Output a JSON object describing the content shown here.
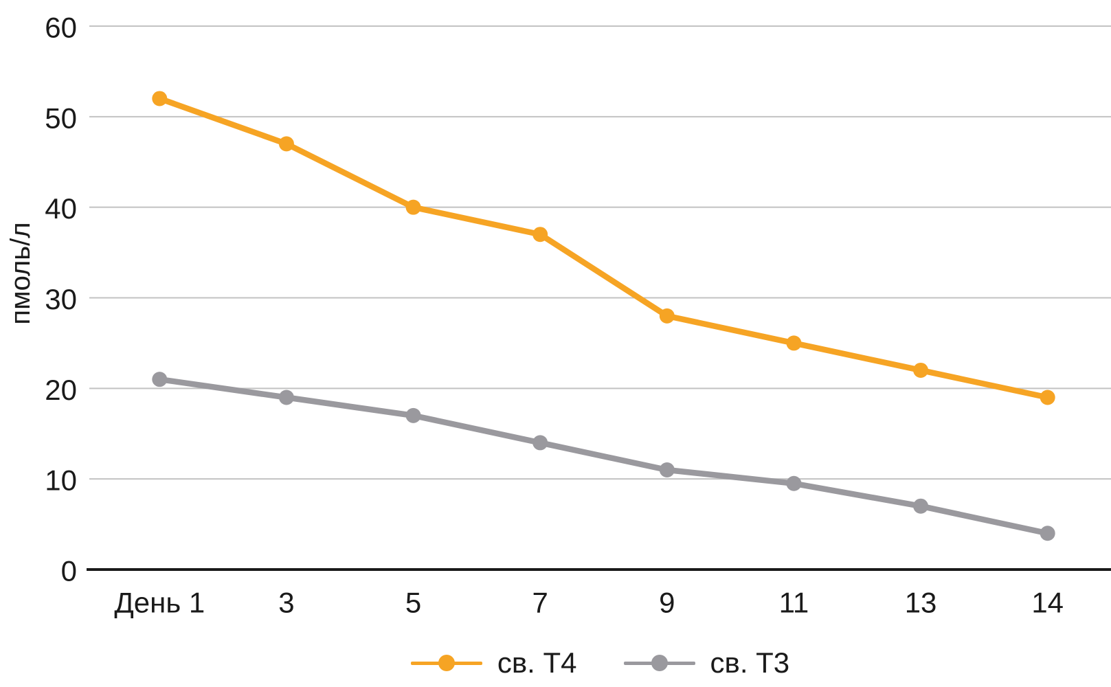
{
  "page": {
    "background": "#ffffff",
    "text_color": "#1a1a1a",
    "gridline_color": "#c2c2c2",
    "axis_color": "#1a1a1a"
  },
  "chart_data": {
    "type": "line",
    "categories": [
      "День 1",
      "3",
      "5",
      "7",
      "9",
      "11",
      "13",
      "14"
    ],
    "series": [
      {
        "name": "св. Т4",
        "color": "#F6A424",
        "values": [
          52,
          47,
          40,
          37,
          28,
          25,
          22,
          19
        ]
      },
      {
        "name": "св. Т3",
        "color": "#9A999E",
        "values": [
          21,
          19,
          17,
          14,
          11,
          9.5,
          7,
          4
        ]
      }
    ],
    "title": "",
    "xlabel": "",
    "ylabel": "пмоль/л",
    "ylim": [
      0,
      60
    ],
    "ytick_step": 10,
    "yticks": [
      0,
      10,
      20,
      30,
      40,
      50,
      60
    ],
    "grid": true,
    "legend_position": "bottom"
  }
}
